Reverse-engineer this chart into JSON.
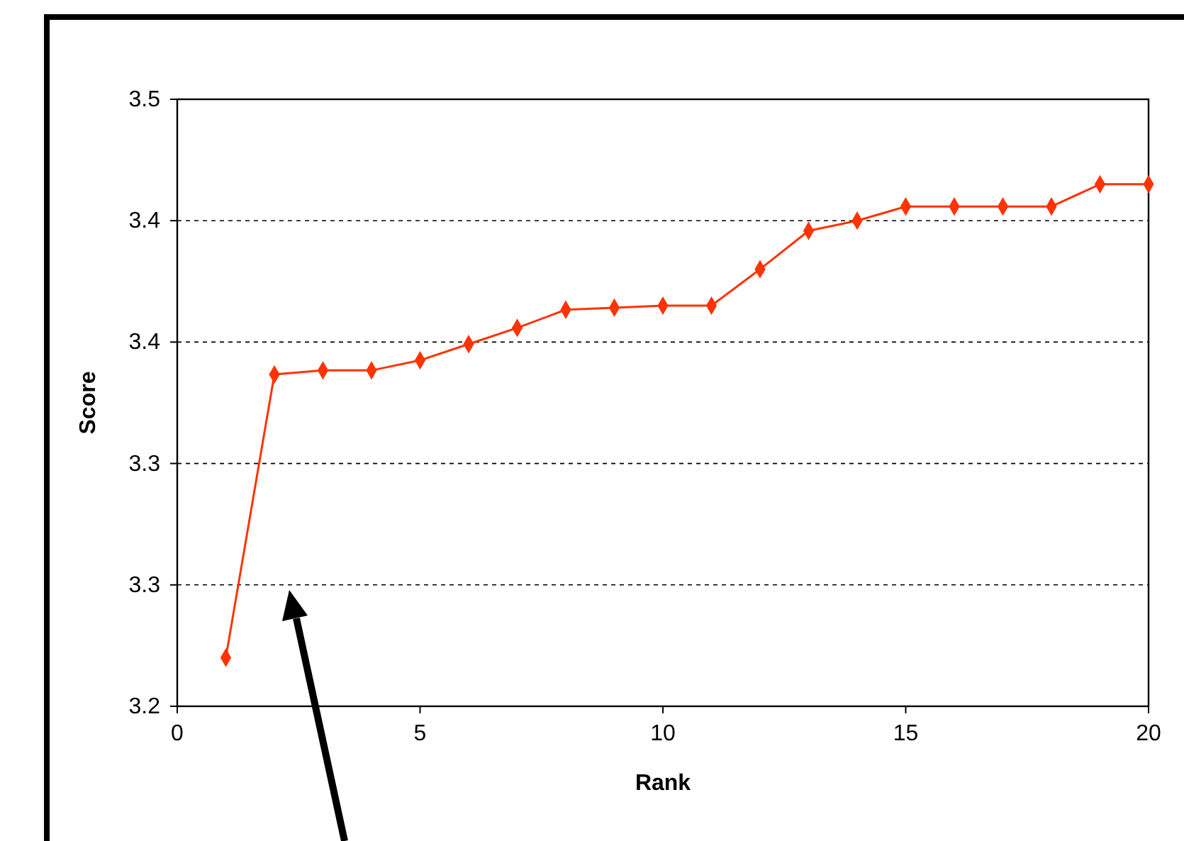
{
  "chart_data": {
    "type": "line",
    "xlabel": "Rank",
    "ylabel": "Score",
    "x": [
      1,
      2,
      3,
      4,
      5,
      6,
      7,
      8,
      9,
      10,
      11,
      12,
      13,
      14,
      15,
      16,
      17,
      18,
      19,
      20
    ],
    "series": [
      {
        "color": "#ff3300",
        "values": [
          3.224,
          3.364,
          3.366,
          3.366,
          3.371,
          3.379,
          3.387,
          3.396,
          3.397,
          3.398,
          3.398,
          3.416,
          3.435,
          3.44,
          3.447,
          3.447,
          3.447,
          3.447,
          3.458,
          3.458
        ]
      }
    ],
    "xlim": [
      0,
      20
    ],
    "xticks": [
      0,
      5,
      10,
      15,
      20
    ],
    "ylim": [
      3.2,
      3.5
    ],
    "yticks": [
      {
        "value": 3.2,
        "label": "3.2"
      },
      {
        "value": 3.26,
        "label": "3.3"
      },
      {
        "value": 3.32,
        "label": "3.3"
      },
      {
        "value": 3.38,
        "label": "3.4"
      },
      {
        "value": 3.44,
        "label": "3.4"
      },
      {
        "value": 3.5,
        "label": "3.5"
      }
    ],
    "grid": "y",
    "marker": "diamond",
    "line_style": "solid"
  }
}
